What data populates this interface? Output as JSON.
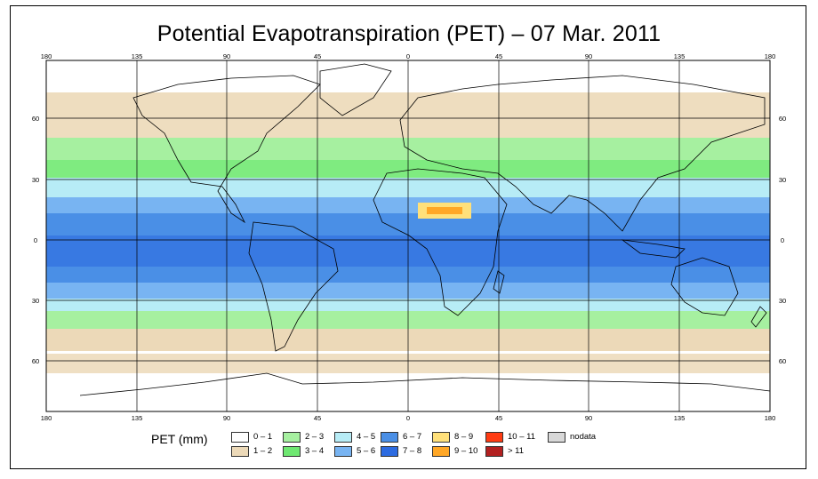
{
  "title": "Potential Evapotranspiration (PET) – 07 Mar. 2011",
  "axes": {
    "lon_ticks": [
      "180",
      "135",
      "90",
      "45",
      "0",
      "45",
      "90",
      "135",
      "180"
    ],
    "lat_ticks": [
      "60",
      "30",
      "0",
      "30",
      "60"
    ]
  },
  "legend": {
    "title": "PET (mm)",
    "items": [
      {
        "label": "0 – 1",
        "color": "#ffffff"
      },
      {
        "label": "1 – 2",
        "color": "#ecd9b8"
      },
      {
        "label": "2 – 3",
        "color": "#a6f0a0"
      },
      {
        "label": "3 – 4",
        "color": "#6fe872"
      },
      {
        "label": "4 – 5",
        "color": "#b7ecf6"
      },
      {
        "label": "5 – 6",
        "color": "#78b4f2"
      },
      {
        "label": "6 – 7",
        "color": "#4a8fe6"
      },
      {
        "label": "7 – 8",
        "color": "#2d6be0"
      },
      {
        "label": "8 – 9",
        "color": "#ffe07a"
      },
      {
        "label": "9 – 10",
        "color": "#ffa726"
      },
      {
        "label": "10 – 11",
        "color": "#ff3b12"
      },
      {
        "label": "> 11",
        "color": "#b22020"
      },
      {
        "label": "nodata",
        "color": "#d8d8d8"
      }
    ]
  }
}
